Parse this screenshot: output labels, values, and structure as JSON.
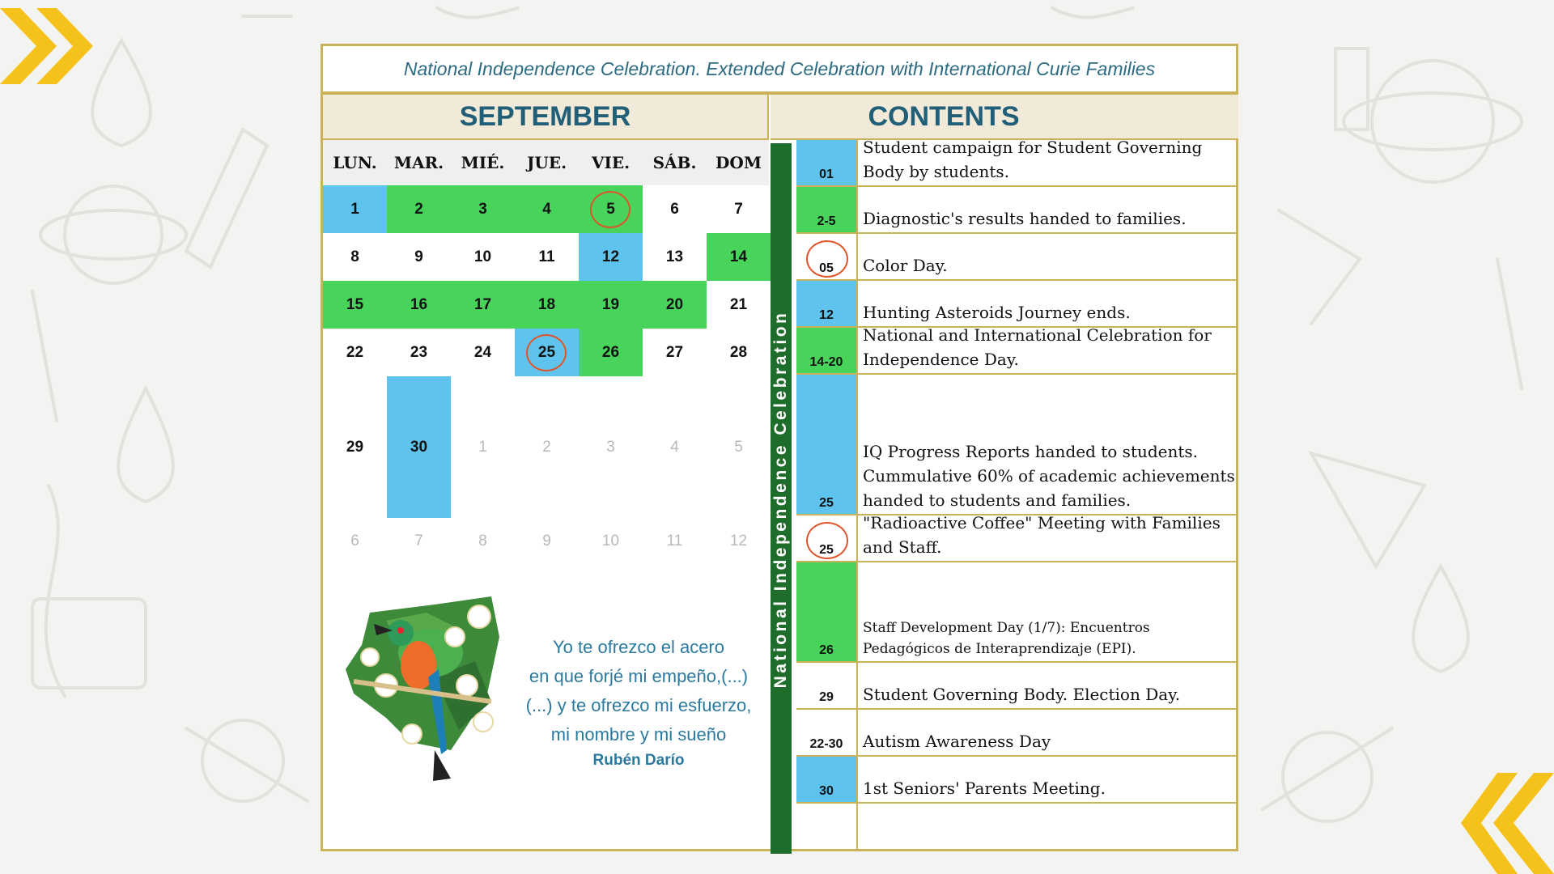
{
  "title": "National Independence Celebration. Extended Celebration with International Curie Families",
  "calendar": {
    "month": "SEPTEMBER",
    "weekdays": [
      "LUN.",
      "MAR.",
      "MIÉ.",
      "JUE.",
      "VIE.",
      "SÁB.",
      "DOM"
    ],
    "weeks": [
      [
        {
          "d": "1",
          "c": "blue"
        },
        {
          "d": "2",
          "c": "green"
        },
        {
          "d": "3",
          "c": "green"
        },
        {
          "d": "4",
          "c": "green"
        },
        {
          "d": "5",
          "c": "green",
          "circle": true
        },
        {
          "d": "6"
        },
        {
          "d": "7"
        }
      ],
      [
        {
          "d": "8"
        },
        {
          "d": "9"
        },
        {
          "d": "10"
        },
        {
          "d": "11"
        },
        {
          "d": "12",
          "c": "blue"
        },
        {
          "d": "13"
        },
        {
          "d": "14",
          "c": "green"
        }
      ],
      [
        {
          "d": "15",
          "c": "green"
        },
        {
          "d": "16",
          "c": "green"
        },
        {
          "d": "17",
          "c": "green"
        },
        {
          "d": "18",
          "c": "green"
        },
        {
          "d": "19",
          "c": "green"
        },
        {
          "d": "20",
          "c": "green"
        },
        {
          "d": "21"
        }
      ],
      [
        {
          "d": "22"
        },
        {
          "d": "23"
        },
        {
          "d": "24"
        },
        {
          "d": "25",
          "c": "blue",
          "circle": true
        },
        {
          "d": "26",
          "c": "green"
        },
        {
          "d": "27"
        },
        {
          "d": "28"
        }
      ],
      [
        {
          "d": "29"
        },
        {
          "d": "30",
          "c": "blue"
        },
        {
          "d": "1",
          "dim": true
        },
        {
          "d": "2",
          "dim": true
        },
        {
          "d": "3",
          "dim": true
        },
        {
          "d": "4",
          "dim": true
        },
        {
          "d": "5",
          "dim": true
        }
      ],
      [
        {
          "d": "6",
          "dim": true
        },
        {
          "d": "7",
          "dim": true
        },
        {
          "d": "8",
          "dim": true
        },
        {
          "d": "9",
          "dim": true
        },
        {
          "d": "10",
          "dim": true
        },
        {
          "d": "11",
          "dim": true
        },
        {
          "d": "12",
          "dim": true
        }
      ]
    ]
  },
  "vertical_label": "National Independence Celebration",
  "contents": {
    "heading": "CONTENTS",
    "items": [
      {
        "code": "01",
        "color": "blue",
        "text": "Student campaign for Student Governing Body by students."
      },
      {
        "code": "2-5",
        "color": "green",
        "text": "Diagnostic's results handed to families."
      },
      {
        "code": "05",
        "color": "white",
        "circle": true,
        "text": "Color Day."
      },
      {
        "code": "12",
        "color": "blue",
        "text": "Hunting Asteroids Journey  ends."
      },
      {
        "code": "14-20",
        "color": "green",
        "text": "National and International Celebration for Independence Day."
      },
      {
        "code": "25",
        "color": "blue",
        "text": "IQ Progress Reports handed to students. Cummulative 60% of academic achievements handed to students and families."
      },
      {
        "code": "25",
        "color": "white",
        "circle": true,
        "text": "\"Radioactive Coffee\" Meeting with Families and Staff."
      },
      {
        "code": "26",
        "color": "green",
        "text": "Staff Development Day (1/7): Encuentros Pedagógicos de Interaprendizaje (EPI)."
      },
      {
        "code": "29",
        "color": "white",
        "text": "Student Governing Body. Election Day."
      },
      {
        "code": "22-30",
        "color": "white",
        "text": "Autism Awareness Day"
      },
      {
        "code": "30",
        "color": "blue",
        "text": "1st Seniors' Parents Meeting."
      },
      {
        "code": "",
        "color": "white",
        "text": ""
      }
    ]
  },
  "poem": {
    "lines": [
      "Yo te ofrezco el acero",
      "en que forjé mi empeño,(...)",
      "(...) y te ofrezco mi esfuerzo,",
      "mi nombre y mi sueño"
    ],
    "author": "Rubén Darío"
  },
  "colors": {
    "blue": "#5ec4ee",
    "green": "#48d45a",
    "gold": "#c9b25a",
    "accent": "#f5c21b",
    "circle": "#e0542a"
  }
}
